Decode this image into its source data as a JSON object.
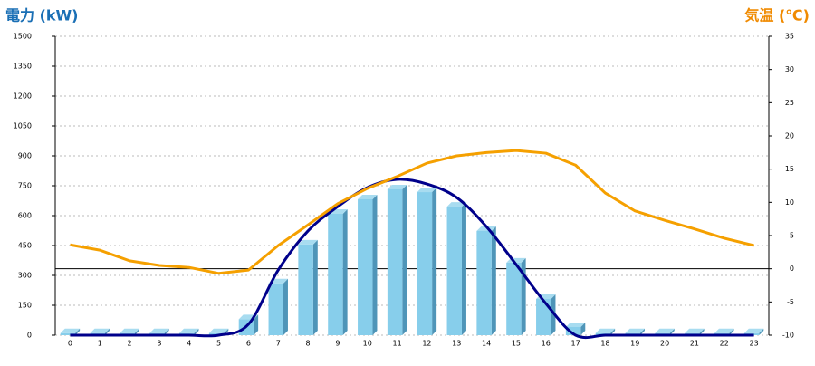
{
  "chart_data": {
    "type": "combo",
    "y_label": "電力 (kW)",
    "y2_label": "気温 (℃)",
    "categories": [
      "0",
      "1",
      "2",
      "3",
      "4",
      "5",
      "6",
      "7",
      "8",
      "9",
      "10",
      "11",
      "12",
      "13",
      "14",
      "15",
      "16",
      "17",
      "18",
      "19",
      "20",
      "21",
      "22",
      "23"
    ],
    "series": [
      {
        "type": "bar",
        "color": "#87ceeb",
        "values": [
          10,
          10,
          10,
          10,
          10,
          10,
          80,
          260,
          455,
          609,
          682,
          732,
          718,
          645,
          523,
          364,
          182,
          41,
          10,
          10,
          10,
          10,
          10,
          10
        ]
      },
      {
        "type": "line",
        "color": "#00008b",
        "values": [
          0,
          0,
          0,
          0,
          0,
          0,
          55,
          327,
          523,
          645,
          741,
          782,
          759,
          691,
          545,
          355,
          159,
          0,
          0,
          0,
          0,
          0,
          0,
          0
        ]
      },
      {
        "type": "line",
        "axis": "y2",
        "color": "#f5a000",
        "values": [
          3.6,
          2.8,
          1.2,
          0.5,
          0.2,
          -0.7,
          -0.2,
          3.5,
          6.6,
          9.8,
          12.1,
          13.9,
          15.9,
          17.0,
          17.5,
          17.8,
          17.4,
          15.6,
          11.4,
          8.7,
          7.3,
          6.0,
          4.6,
          3.5
        ]
      }
    ],
    "ylim": [
      0,
      1500
    ],
    "yticks": [
      0,
      150,
      300,
      450,
      600,
      750,
      900,
      1050,
      1200,
      1350,
      1500
    ],
    "y2lim": [
      -10,
      35
    ],
    "y2ticks": [
      -10,
      -5,
      0,
      5,
      10,
      15,
      20,
      25,
      30,
      35
    ],
    "grid": true,
    "y2_zero_line": true
  }
}
